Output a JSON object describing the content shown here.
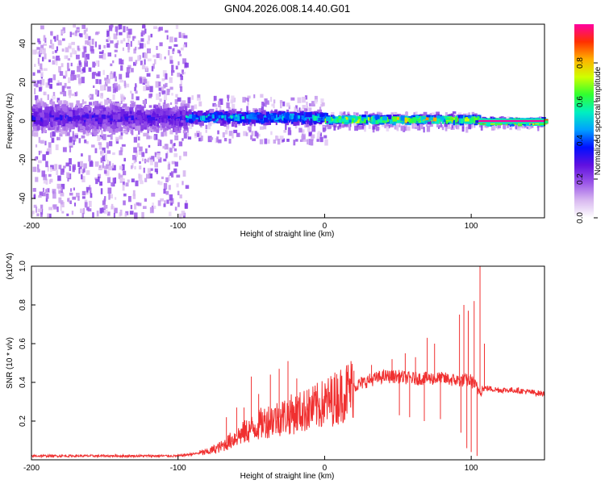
{
  "title": "GN04.2026.008.14.40.G01",
  "chart_data": [
    {
      "type": "heatmap",
      "xlabel": "Height of straight line (km)",
      "ylabel": "Frequency (Hz)",
      "xlim": [
        -200,
        150
      ],
      "ylim": [
        -50,
        50
      ],
      "x_ticks": [
        -200,
        -100,
        0,
        100
      ],
      "y_ticks": [
        -40,
        -20,
        0,
        20,
        40
      ],
      "colorbar": {
        "label": "Normalized spectral amplitude",
        "range": [
          0,
          1
        ],
        "ticks": [
          "0.0",
          "0.2",
          "0.4",
          "0.6",
          "0.8"
        ],
        "colors": [
          "#ffffff",
          "#d8b8f0",
          "#9a55e8",
          "#6010e0",
          "#0010ff",
          "#00a0ff",
          "#00f0c0",
          "#30ff30",
          "#d0ff00",
          "#ffb000",
          "#ff3000",
          "#ff00a0"
        ]
      },
      "segments": [
        {
          "x_range": [
            -200,
            -95
          ],
          "center_hz": 2,
          "core_halfwidth_hz": 10,
          "scatter_halfwidth_hz": 50,
          "peak_amplitude": 0.35
        },
        {
          "x_range": [
            -95,
            0
          ],
          "center_hz": 2,
          "core_halfwidth_hz": 4,
          "scatter_halfwidth_hz": 12,
          "peak_amplitude": 0.6
        },
        {
          "x_range": [
            0,
            105
          ],
          "center_hz": 1,
          "core_halfwidth_hz": 2,
          "scatter_halfwidth_hz": 4,
          "peak_amplitude": 0.9
        },
        {
          "x_range": [
            105,
            150
          ],
          "center_hz": 0,
          "core_halfwidth_hz": 1.5,
          "scatter_halfwidth_hz": 2.5,
          "peak_amplitude": 1.0
        }
      ]
    },
    {
      "type": "line",
      "xlabel": "Height of straight line (km)",
      "ylabel": "SNR (10 * v/v)",
      "y_multiplier": "(x10^4)",
      "xlim": [
        -200,
        150
      ],
      "ylim": [
        0,
        1.0
      ],
      "x_ticks": [
        -200,
        -100,
        0,
        100
      ],
      "y_ticks": [
        "0.2",
        "0.4",
        "0.6",
        "0.8",
        "1.0"
      ],
      "color": "#f03030",
      "series": [
        {
          "name": "SNR",
          "x": [
            -200,
            -150,
            -100,
            -90,
            -80,
            -70,
            -60,
            -50,
            -40,
            -30,
            -20,
            -10,
            0,
            10,
            20,
            30,
            40,
            50,
            60,
            70,
            80,
            90,
            100,
            105,
            110,
            120,
            130,
            140,
            150
          ],
          "y": [
            0.02,
            0.02,
            0.02,
            0.03,
            0.04,
            0.07,
            0.12,
            0.16,
            0.2,
            0.22,
            0.24,
            0.26,
            0.29,
            0.33,
            0.38,
            0.41,
            0.43,
            0.43,
            0.42,
            0.42,
            0.42,
            0.41,
            0.41,
            0.36,
            0.37,
            0.36,
            0.36,
            0.35,
            0.34
          ]
        }
      ],
      "spikes": [
        {
          "x": -67,
          "y": 0.22
        },
        {
          "x": -60,
          "y": 0.27
        },
        {
          "x": -55,
          "y": 0.27
        },
        {
          "x": -50,
          "y": 0.43
        },
        {
          "x": -45,
          "y": 0.34
        },
        {
          "x": -37,
          "y": 0.44
        },
        {
          "x": -31,
          "y": 0.47
        },
        {
          "x": -25,
          "y": 0.51
        },
        {
          "x": -19,
          "y": 0.42
        },
        {
          "x": -12,
          "y": 0.36
        },
        {
          "x": 20,
          "y": 0.46
        },
        {
          "x": 32,
          "y": 0.49
        },
        {
          "x": 46,
          "y": 0.52
        },
        {
          "x": 55,
          "y": 0.55
        },
        {
          "x": 62,
          "y": 0.53
        },
        {
          "x": 70,
          "y": 0.63
        },
        {
          "x": 75,
          "y": 0.6
        },
        {
          "x": 92,
          "y": 0.75
        },
        {
          "x": 95,
          "y": 0.8
        },
        {
          "x": 98,
          "y": 0.77
        },
        {
          "x": 102,
          "y": 0.82
        },
        {
          "x": 106,
          "y": 1.0
        },
        {
          "x": 109,
          "y": 0.6
        }
      ],
      "dips": [
        {
          "x": 51,
          "y": 0.23
        },
        {
          "x": 58,
          "y": 0.22
        },
        {
          "x": 68,
          "y": 0.2
        },
        {
          "x": 79,
          "y": 0.21
        },
        {
          "x": 93,
          "y": 0.14
        },
        {
          "x": 97,
          "y": 0.06
        },
        {
          "x": 100,
          "y": 0.04
        },
        {
          "x": 104,
          "y": 0.02
        }
      ]
    }
  ]
}
